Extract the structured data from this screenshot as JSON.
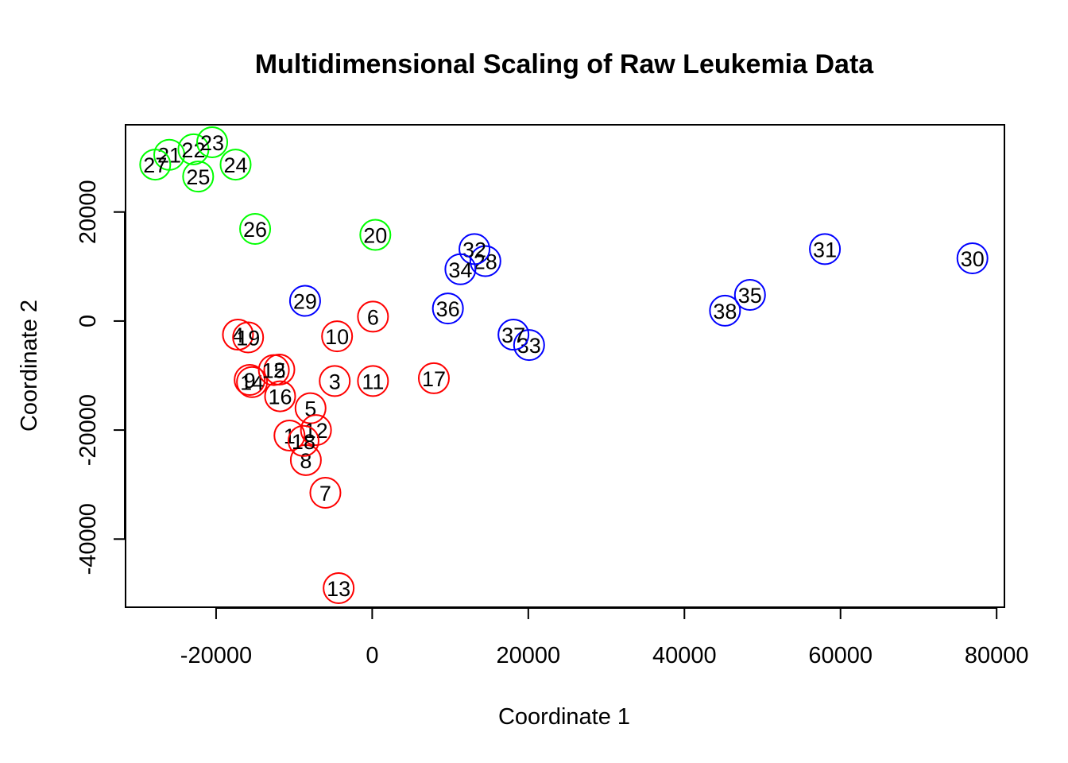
{
  "chart_data": {
    "type": "scatter",
    "title": "Multidimensional Scaling of Raw Leukemia Data",
    "xlabel": "Coordinate 1",
    "ylabel": "Coordinate 2",
    "xlim": [
      -31600,
      81000
    ],
    "ylim": [
      -52500,
      36000
    ],
    "xticks": [
      -20000,
      0,
      20000,
      40000,
      60000,
      80000
    ],
    "xtick_labels": [
      "-20000",
      "0",
      "20000",
      "40000",
      "60000",
      "80000"
    ],
    "yticks": [
      -40000,
      -20000,
      0,
      20000
    ],
    "ytick_labels": [
      "-40000",
      "-20000",
      "0",
      "20000"
    ],
    "grid": false,
    "marker": "open-circle",
    "group_colors": {
      "red": "#ff0000",
      "green": "#00ff00",
      "blue": "#0000ff"
    },
    "points": [
      {
        "label": "1",
        "x": -10600,
        "y": -21000,
        "group": "red"
      },
      {
        "label": "2",
        "x": -11900,
        "y": -8900,
        "group": "red"
      },
      {
        "label": "3",
        "x": -4800,
        "y": -11000,
        "group": "red"
      },
      {
        "label": "4",
        "x": -17200,
        "y": -2500,
        "group": "red"
      },
      {
        "label": "5",
        "x": -7900,
        "y": -16000,
        "group": "red"
      },
      {
        "label": "6",
        "x": 100,
        "y": 800,
        "group": "red"
      },
      {
        "label": "7",
        "x": -6000,
        "y": -31500,
        "group": "red"
      },
      {
        "label": "8",
        "x": -8500,
        "y": -25500,
        "group": "red"
      },
      {
        "label": "9",
        "x": -15700,
        "y": -10800,
        "group": "red"
      },
      {
        "label": "10",
        "x": -4500,
        "y": -2800,
        "group": "red"
      },
      {
        "label": "11",
        "x": 100,
        "y": -11000,
        "group": "red"
      },
      {
        "label": "12",
        "x": -7200,
        "y": -20000,
        "group": "red"
      },
      {
        "label": "13",
        "x": -4300,
        "y": -49000,
        "group": "red"
      },
      {
        "label": "14",
        "x": -15400,
        "y": -11200,
        "group": "red"
      },
      {
        "label": "15",
        "x": -12600,
        "y": -9000,
        "group": "red"
      },
      {
        "label": "16",
        "x": -11800,
        "y": -13800,
        "group": "red"
      },
      {
        "label": "17",
        "x": 7900,
        "y": -10500,
        "group": "red"
      },
      {
        "label": "18",
        "x": -8800,
        "y": -22000,
        "group": "red"
      },
      {
        "label": "19",
        "x": -15900,
        "y": -3000,
        "group": "red"
      },
      {
        "label": "20",
        "x": 400,
        "y": 15800,
        "group": "green"
      },
      {
        "label": "21",
        "x": -26000,
        "y": 30500,
        "group": "green"
      },
      {
        "label": "22",
        "x": -22900,
        "y": 31500,
        "group": "green"
      },
      {
        "label": "23",
        "x": -20500,
        "y": 32800,
        "group": "green"
      },
      {
        "label": "24",
        "x": -17500,
        "y": 28700,
        "group": "green"
      },
      {
        "label": "25",
        "x": -22300,
        "y": 26500,
        "group": "green"
      },
      {
        "label": "26",
        "x": -15000,
        "y": 16900,
        "group": "green"
      },
      {
        "label": "27",
        "x": -27800,
        "y": 28700,
        "group": "green"
      },
      {
        "label": "28",
        "x": 14500,
        "y": 11000,
        "group": "blue"
      },
      {
        "label": "29",
        "x": -8600,
        "y": 3700,
        "group": "blue"
      },
      {
        "label": "30",
        "x": 76900,
        "y": 11500,
        "group": "blue"
      },
      {
        "label": "31",
        "x": 58000,
        "y": 13200,
        "group": "blue"
      },
      {
        "label": "32",
        "x": 13100,
        "y": 13200,
        "group": "blue"
      },
      {
        "label": "33",
        "x": 20100,
        "y": -4400,
        "group": "blue"
      },
      {
        "label": "34",
        "x": 11300,
        "y": 9500,
        "group": "blue"
      },
      {
        "label": "35",
        "x": 48400,
        "y": 4800,
        "group": "blue"
      },
      {
        "label": "36",
        "x": 9700,
        "y": 2300,
        "group": "blue"
      },
      {
        "label": "37",
        "x": 18100,
        "y": -2500,
        "group": "blue"
      },
      {
        "label": "38",
        "x": 45200,
        "y": 1900,
        "group": "blue"
      }
    ]
  }
}
